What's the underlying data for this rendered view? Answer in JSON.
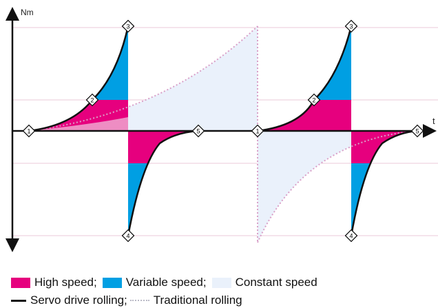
{
  "axes": {
    "y_label": "Nm",
    "x_label": "t"
  },
  "markers": [
    "1",
    "2",
    "3",
    "4",
    "5"
  ],
  "legend": {
    "areas": [
      {
        "label": "High speed;",
        "color": "#e6007e"
      },
      {
        "label": "Variable speed;",
        "color": "#009fe3"
      },
      {
        "label": "Constant speed",
        "color": "#eaf1fb"
      }
    ],
    "lines": [
      {
        "label": "Servo drive rolling;",
        "style": "solid",
        "color": "#111111"
      },
      {
        "label": "Traditional rolling",
        "style": "dotted",
        "color": "#d9a0c8"
      }
    ]
  },
  "colors": {
    "high_speed": "#e6007e",
    "variable_speed": "#009fe3",
    "constant_speed": "#eaf1fb",
    "grid": "#f2dbe6",
    "traditional": "#d9a0c8"
  }
}
